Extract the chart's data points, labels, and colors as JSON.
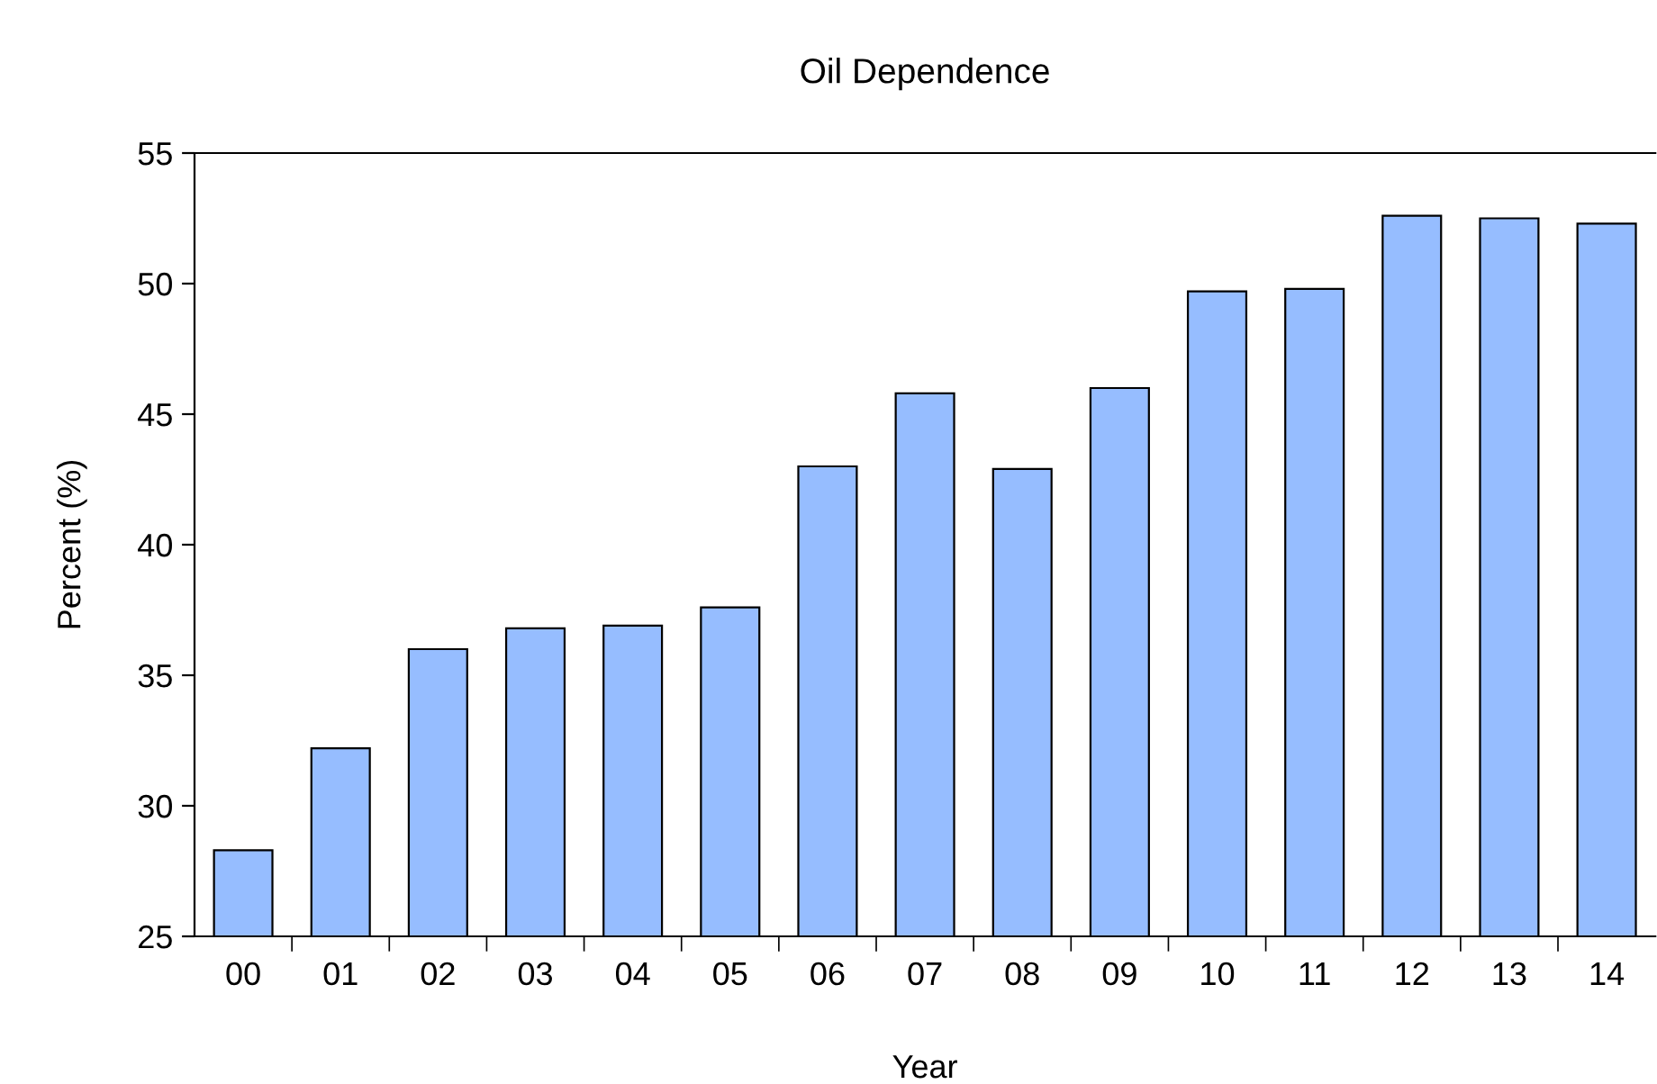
{
  "chart_data": {
    "type": "bar",
    "title": "Oil Dependence",
    "xlabel": "Year",
    "ylabel": "Percent (%)",
    "categories": [
      "00",
      "01",
      "02",
      "03",
      "04",
      "05",
      "06",
      "07",
      "08",
      "09",
      "10",
      "11",
      "12",
      "13",
      "14"
    ],
    "values": [
      28.3,
      32.2,
      36.0,
      36.8,
      36.9,
      37.6,
      43.0,
      45.8,
      42.9,
      46.0,
      49.7,
      49.8,
      52.6,
      52.5,
      52.3
    ],
    "color": "#96bdff",
    "ylim": [
      25,
      55
    ],
    "yticks": [
      25,
      30,
      35,
      40,
      45,
      50,
      55
    ],
    "grid": false
  }
}
